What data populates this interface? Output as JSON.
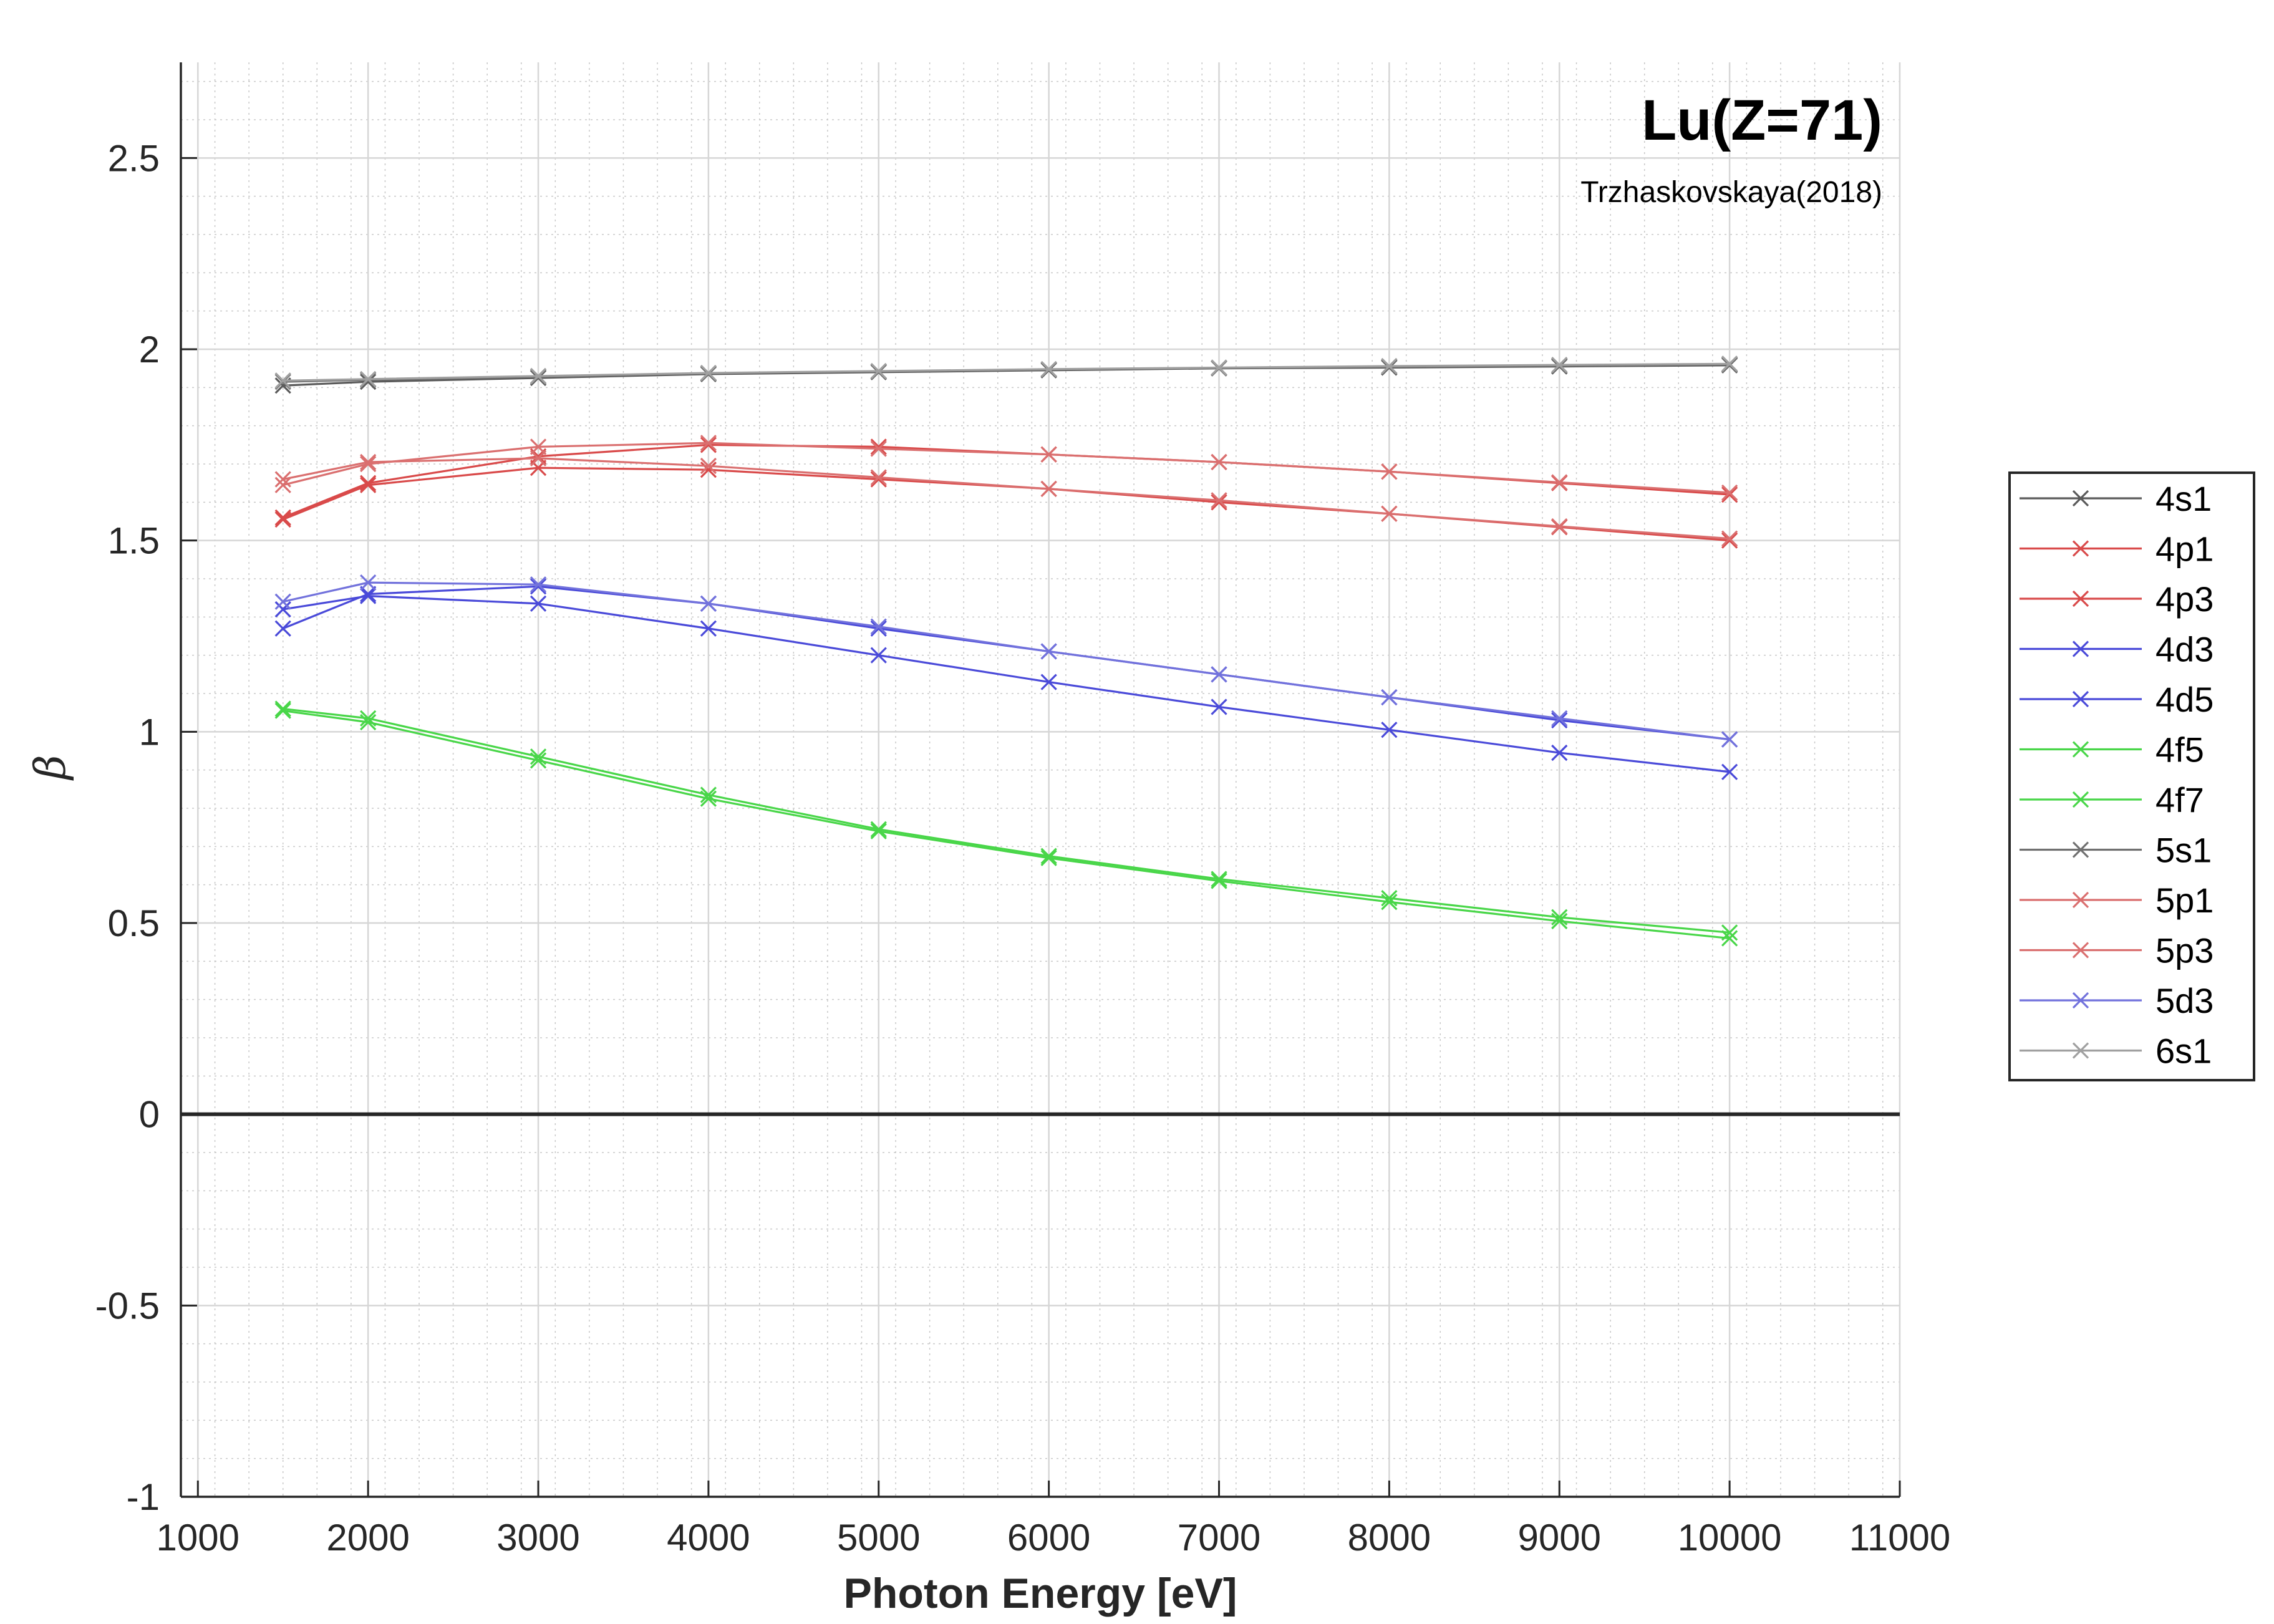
{
  "chart_data": {
    "type": "line",
    "title": "Lu(Z=71)",
    "subtitle": "Trzhaskovskaya(2018)",
    "xlabel": "Photon Energy [eV]",
    "ylabel": "β",
    "xlim": [
      900,
      11000
    ],
    "ylim": [
      -1,
      2.75
    ],
    "x_ticks": [
      1000,
      2000,
      3000,
      4000,
      5000,
      6000,
      7000,
      8000,
      9000,
      10000,
      11000
    ],
    "y_ticks": [
      -1,
      -0.5,
      0,
      0.5,
      1,
      1.5,
      2,
      2.5
    ],
    "x_tick_labels": [
      "1000",
      "2000",
      "3000",
      "4000",
      "5000",
      "6000",
      "7000",
      "8000",
      "9000",
      "10000",
      "11000"
    ],
    "y_tick_labels": [
      "-1",
      "-0.5",
      "0",
      "0.5",
      "1",
      "1.5",
      "2",
      "2.5"
    ],
    "grid": true,
    "minor_grid": true,
    "legend_position": "outside-right",
    "marker": "x",
    "x": [
      1500,
      2000,
      3000,
      4000,
      5000,
      6000,
      7000,
      8000,
      9000,
      10000
    ],
    "series": [
      {
        "name": "4s1",
        "color": "#5a5a5a",
        "values": [
          1.905,
          1.915,
          1.925,
          1.935,
          1.94,
          1.945,
          1.95,
          1.952,
          1.955,
          1.958
        ]
      },
      {
        "name": "4p1",
        "color": "#d94a4a",
        "values": [
          1.56,
          1.65,
          1.72,
          1.75,
          1.745,
          1.725,
          1.705,
          1.68,
          1.65,
          1.62
        ]
      },
      {
        "name": "4p3",
        "color": "#d94a4a",
        "values": [
          1.555,
          1.645,
          1.69,
          1.685,
          1.66,
          1.635,
          1.6,
          1.57,
          1.535,
          1.5
        ]
      },
      {
        "name": "4d3",
        "color": "#4a4ad9",
        "values": [
          1.27,
          1.36,
          1.38,
          1.335,
          1.27,
          1.21,
          1.15,
          1.09,
          1.03,
          0.98
        ]
      },
      {
        "name": "4d5",
        "color": "#4a4ad9",
        "values": [
          1.32,
          1.355,
          1.335,
          1.27,
          1.2,
          1.13,
          1.065,
          1.005,
          0.945,
          0.895
        ]
      },
      {
        "name": "4f5",
        "color": "#49d649",
        "values": [
          1.06,
          1.035,
          0.935,
          0.835,
          0.745,
          0.675,
          0.615,
          0.565,
          0.515,
          0.475
        ]
      },
      {
        "name": "4f7",
        "color": "#49d649",
        "values": [
          1.055,
          1.025,
          0.925,
          0.825,
          0.74,
          0.67,
          0.61,
          0.555,
          0.505,
          0.46
        ]
      },
      {
        "name": "5s1",
        "color": "#707070",
        "values": [
          1.915,
          1.92,
          1.928,
          1.937,
          1.942,
          1.947,
          1.951,
          1.954,
          1.957,
          1.96
        ]
      },
      {
        "name": "5p1",
        "color": "#da6f6f",
        "values": [
          1.645,
          1.7,
          1.745,
          1.755,
          1.74,
          1.725,
          1.705,
          1.68,
          1.652,
          1.625
        ]
      },
      {
        "name": "5p3",
        "color": "#da6f6f",
        "values": [
          1.66,
          1.705,
          1.715,
          1.695,
          1.665,
          1.635,
          1.605,
          1.57,
          1.537,
          1.505
        ]
      },
      {
        "name": "5d3",
        "color": "#7272dc",
        "values": [
          1.34,
          1.39,
          1.385,
          1.335,
          1.275,
          1.21,
          1.15,
          1.09,
          1.035,
          0.98
        ]
      },
      {
        "name": "6s1",
        "color": "#a0a0a0",
        "values": [
          1.918,
          1.922,
          1.93,
          1.938,
          1.943,
          1.948,
          1.952,
          1.956,
          1.959,
          1.962
        ]
      }
    ]
  }
}
